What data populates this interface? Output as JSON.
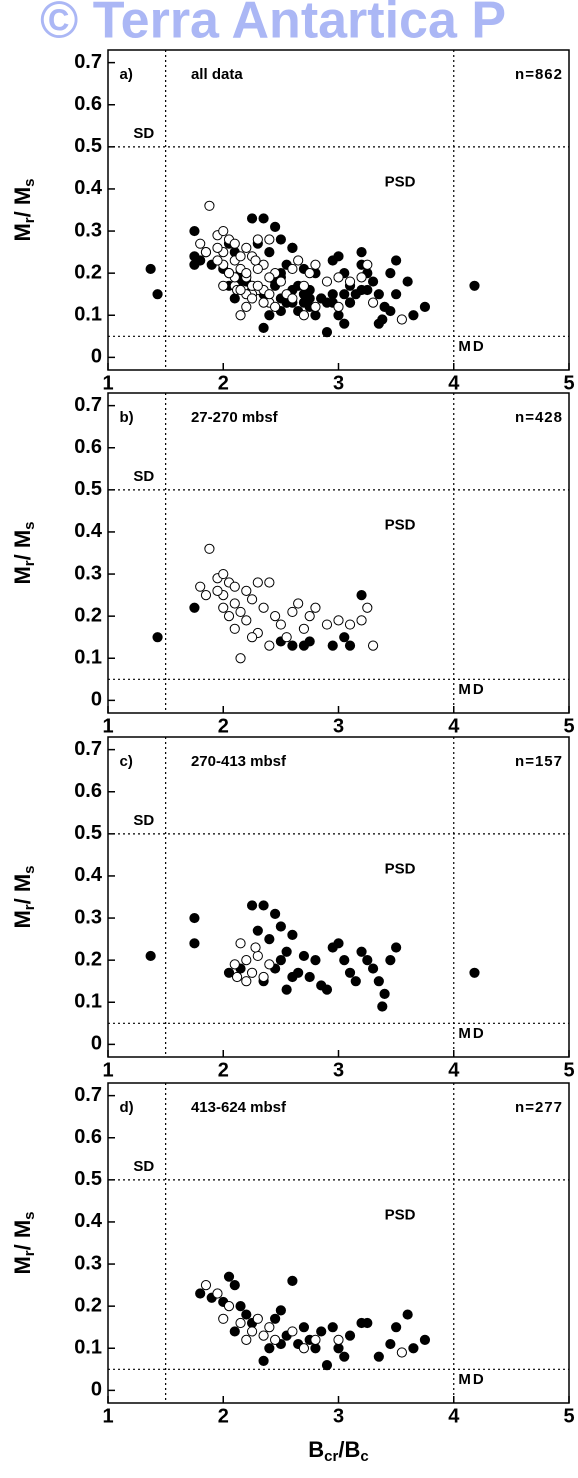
{
  "watermark": "© Terra Antartica P",
  "chart_data": [
    {
      "type": "scatter",
      "panel": "a)",
      "subtitle": "all data",
      "n_label": "n=862",
      "sd_label": "SD",
      "psd_label": "PSD",
      "md_label": "MD",
      "y_label": [
        "M",
        "r",
        "/ M",
        "s"
      ],
      "xlim": [
        1,
        5
      ],
      "ylim": [
        -0.03,
        0.73
      ],
      "xticks": [
        1,
        2,
        3,
        4,
        5
      ],
      "yticks": [
        0,
        0.1,
        0.2,
        0.3,
        0.4,
        0.5,
        0.6,
        0.7
      ],
      "ref_x": [
        1.5,
        4
      ],
      "ref_y": [
        0.5,
        0.05
      ],
      "series": [
        {
          "color": "#000000",
          "x": [
            1.43,
            1.75,
            3.2,
            2.6,
            2.75,
            2.95,
            3.1,
            3.05,
            2.7,
            2.5,
            1.37,
            1.75,
            1.75,
            2.05,
            2.15,
            2.25,
            2.35,
            2.3,
            2.4,
            2.45,
            2.5,
            2.55,
            2.6,
            2.5,
            2.45,
            2.55,
            2.65,
            2.7,
            2.75,
            2.8,
            2.85,
            2.9,
            2.95,
            3.0,
            3.05,
            3.1,
            3.15,
            3.2,
            3.25,
            3.3,
            3.35,
            3.4,
            3.38,
            3.45,
            3.5,
            4.18,
            2.35,
            2.6,
            1.8,
            1.9,
            2.0,
            2.05,
            2.1,
            2.15,
            2.2,
            2.1,
            2.35,
            2.4,
            2.45,
            2.5,
            2.55,
            2.6,
            2.65,
            2.7,
            2.75,
            2.8,
            2.85,
            2.9,
            2.95,
            3.0,
            3.05,
            3.1,
            3.2,
            3.25,
            3.35,
            3.45,
            3.5,
            3.6,
            3.65,
            3.75,
            2.25,
            2.5
          ],
          "values": [
            0.15,
            0.22,
            0.25,
            0.13,
            0.14,
            0.13,
            0.13,
            0.15,
            0.13,
            0.14,
            0.21,
            0.3,
            0.24,
            0.17,
            0.18,
            0.33,
            0.33,
            0.27,
            0.25,
            0.31,
            0.28,
            0.22,
            0.26,
            0.2,
            0.18,
            0.13,
            0.17,
            0.21,
            0.16,
            0.2,
            0.14,
            0.13,
            0.23,
            0.24,
            0.2,
            0.17,
            0.15,
            0.22,
            0.2,
            0.18,
            0.15,
            0.12,
            0.09,
            0.2,
            0.23,
            0.17,
            0.15,
            0.16,
            0.23,
            0.22,
            0.21,
            0.27,
            0.25,
            0.2,
            0.18,
            0.14,
            0.07,
            0.1,
            0.17,
            0.19,
            0.13,
            0.26,
            0.11,
            0.15,
            0.12,
            0.1,
            0.14,
            0.06,
            0.15,
            0.1,
            0.08,
            0.13,
            0.16,
            0.16,
            0.08,
            0.11,
            0.15,
            0.18,
            0.1,
            0.12,
            0.16,
            0.11
          ]
        },
        {
          "color": "#ffffff",
          "x": [
            1.88,
            1.8,
            1.85,
            1.95,
            2.0,
            2.05,
            2.1,
            2.0,
            2.1,
            2.15,
            2.2,
            2.25,
            2.05,
            2.1,
            2.15,
            2.3,
            2.35,
            2.4,
            2.2,
            2.3,
            2.45,
            2.5,
            2.6,
            2.65,
            2.7,
            2.75,
            2.8,
            2.9,
            3.0,
            3.1,
            3.25,
            3.3,
            3.2,
            2.55,
            2.4,
            2.0,
            1.95,
            2.25,
            2.1,
            2.15,
            2.2,
            2.25,
            2.3,
            2.2,
            2.35,
            2.4,
            2.28,
            2.12,
            1.85,
            1.95,
            2.05,
            2.0,
            2.15,
            2.2,
            2.25,
            2.3,
            2.35,
            2.4,
            2.45,
            2.6,
            2.7,
            2.8,
            3.55,
            3.0
          ],
          "values": [
            0.36,
            0.27,
            0.25,
            0.29,
            0.3,
            0.28,
            0.27,
            0.25,
            0.23,
            0.21,
            0.26,
            0.24,
            0.2,
            0.17,
            0.1,
            0.28,
            0.22,
            0.28,
            0.19,
            0.16,
            0.2,
            0.18,
            0.21,
            0.23,
            0.17,
            0.2,
            0.22,
            0.18,
            0.19,
            0.18,
            0.22,
            0.13,
            0.19,
            0.15,
            0.13,
            0.22,
            0.26,
            0.15,
            0.19,
            0.24,
            0.2,
            0.17,
            0.21,
            0.15,
            0.16,
            0.19,
            0.23,
            0.16,
            0.25,
            0.23,
            0.2,
            0.17,
            0.16,
            0.12,
            0.14,
            0.17,
            0.13,
            0.15,
            0.12,
            0.14,
            0.1,
            0.12,
            0.09,
            0.12
          ]
        }
      ]
    },
    {
      "type": "scatter",
      "panel": "b)",
      "subtitle": "27-270 mbsf",
      "n_label": "n=428",
      "sd_label": "SD",
      "psd_label": "PSD",
      "md_label": "MD",
      "y_label": [
        "M",
        "r",
        "/ M",
        "s"
      ],
      "xlim": [
        1,
        5
      ],
      "ylim": [
        -0.03,
        0.73
      ],
      "xticks": [
        1,
        2,
        3,
        4,
        5
      ],
      "yticks": [
        0,
        0.1,
        0.2,
        0.3,
        0.4,
        0.5,
        0.6,
        0.7
      ],
      "ref_x": [
        1.5,
        4
      ],
      "ref_y": [
        0.5,
        0.05
      ],
      "series": [
        {
          "color": "#000000",
          "x": [
            1.43,
            1.75,
            3.2,
            2.6,
            2.75,
            2.95,
            3.1,
            3.05,
            2.7,
            2.5
          ],
          "values": [
            0.15,
            0.22,
            0.25,
            0.13,
            0.14,
            0.13,
            0.13,
            0.15,
            0.13,
            0.14
          ]
        },
        {
          "color": "#ffffff",
          "x": [
            1.88,
            1.8,
            1.85,
            1.95,
            2.0,
            2.05,
            2.1,
            2.0,
            2.1,
            2.15,
            2.2,
            2.25,
            2.05,
            2.1,
            2.15,
            2.3,
            2.35,
            2.4,
            2.2,
            2.3,
            2.45,
            2.5,
            2.6,
            2.65,
            2.7,
            2.75,
            2.8,
            2.9,
            3.0,
            3.1,
            3.25,
            3.3,
            3.2,
            2.55,
            2.4,
            2.0,
            1.95,
            2.25
          ],
          "values": [
            0.36,
            0.27,
            0.25,
            0.29,
            0.3,
            0.28,
            0.27,
            0.25,
            0.23,
            0.21,
            0.26,
            0.24,
            0.2,
            0.17,
            0.1,
            0.28,
            0.22,
            0.28,
            0.19,
            0.16,
            0.2,
            0.18,
            0.21,
            0.23,
            0.17,
            0.2,
            0.22,
            0.18,
            0.19,
            0.18,
            0.22,
            0.13,
            0.19,
            0.15,
            0.13,
            0.22,
            0.26,
            0.15
          ]
        }
      ]
    },
    {
      "type": "scatter",
      "panel": "c)",
      "subtitle": "270-413 mbsf",
      "n_label": "n=157",
      "sd_label": "SD",
      "psd_label": "PSD",
      "md_label": "MD",
      "y_label": [
        "M",
        "r",
        "/ M",
        "s"
      ],
      "xlim": [
        1,
        5
      ],
      "ylim": [
        -0.03,
        0.73
      ],
      "xticks": [
        1,
        2,
        3,
        4,
        5
      ],
      "yticks": [
        0,
        0.1,
        0.2,
        0.3,
        0.4,
        0.5,
        0.6,
        0.7
      ],
      "ref_x": [
        1.5,
        4
      ],
      "ref_y": [
        0.5,
        0.05
      ],
      "series": [
        {
          "color": "#000000",
          "x": [
            1.37,
            1.75,
            1.75,
            2.05,
            2.15,
            2.25,
            2.35,
            2.3,
            2.4,
            2.45,
            2.5,
            2.55,
            2.6,
            2.5,
            2.45,
            2.55,
            2.65,
            2.7,
            2.75,
            2.8,
            2.85,
            2.9,
            2.95,
            3.0,
            3.05,
            3.1,
            3.15,
            3.2,
            3.25,
            3.3,
            3.35,
            3.4,
            3.38,
            3.45,
            3.5,
            4.18,
            2.35,
            2.6
          ],
          "values": [
            0.21,
            0.3,
            0.24,
            0.17,
            0.18,
            0.33,
            0.33,
            0.27,
            0.25,
            0.31,
            0.28,
            0.22,
            0.26,
            0.2,
            0.18,
            0.13,
            0.17,
            0.21,
            0.16,
            0.2,
            0.14,
            0.13,
            0.23,
            0.24,
            0.2,
            0.17,
            0.15,
            0.22,
            0.2,
            0.18,
            0.15,
            0.12,
            0.09,
            0.2,
            0.23,
            0.17,
            0.15,
            0.16
          ]
        },
        {
          "color": "#ffffff",
          "x": [
            2.1,
            2.15,
            2.2,
            2.25,
            2.3,
            2.2,
            2.35,
            2.4,
            2.28,
            2.12
          ],
          "values": [
            0.19,
            0.24,
            0.2,
            0.17,
            0.21,
            0.15,
            0.16,
            0.19,
            0.23,
            0.16
          ]
        }
      ]
    },
    {
      "type": "scatter",
      "panel": "d)",
      "subtitle": "413-624 mbsf",
      "n_label": "n=277",
      "sd_label": "SD",
      "psd_label": "PSD",
      "md_label": "MD",
      "y_label": [
        "M",
        "r",
        "/ M",
        "s"
      ],
      "x_label": [
        "B",
        "cr",
        "/B",
        "c"
      ],
      "xlim": [
        1,
        5
      ],
      "ylim": [
        -0.03,
        0.73
      ],
      "xticks": [
        1,
        2,
        3,
        4,
        5
      ],
      "yticks": [
        0,
        0.1,
        0.2,
        0.3,
        0.4,
        0.5,
        0.6,
        0.7
      ],
      "ref_x": [
        1.5,
        4
      ],
      "ref_y": [
        0.5,
        0.05
      ],
      "series": [
        {
          "color": "#000000",
          "x": [
            1.8,
            1.9,
            2.0,
            2.05,
            2.1,
            2.15,
            2.2,
            2.1,
            2.35,
            2.4,
            2.45,
            2.5,
            2.55,
            2.6,
            2.65,
            2.7,
            2.75,
            2.8,
            2.85,
            2.9,
            2.95,
            3.0,
            3.05,
            3.1,
            3.2,
            3.25,
            3.35,
            3.45,
            3.5,
            3.6,
            3.65,
            3.75,
            2.25,
            2.5
          ],
          "values": [
            0.23,
            0.22,
            0.21,
            0.27,
            0.25,
            0.2,
            0.18,
            0.14,
            0.07,
            0.1,
            0.17,
            0.19,
            0.13,
            0.26,
            0.11,
            0.15,
            0.12,
            0.1,
            0.14,
            0.06,
            0.15,
            0.1,
            0.08,
            0.13,
            0.16,
            0.16,
            0.08,
            0.11,
            0.15,
            0.18,
            0.1,
            0.12,
            0.16,
            0.11
          ]
        },
        {
          "color": "#ffffff",
          "x": [
            1.85,
            1.95,
            2.05,
            2.0,
            2.15,
            2.2,
            2.25,
            2.3,
            2.35,
            2.4,
            2.45,
            2.6,
            2.7,
            2.8,
            3.55,
            3.0
          ],
          "values": [
            0.25,
            0.23,
            0.2,
            0.17,
            0.16,
            0.12,
            0.14,
            0.17,
            0.13,
            0.15,
            0.12,
            0.14,
            0.1,
            0.12,
            0.09,
            0.12
          ]
        }
      ]
    }
  ]
}
